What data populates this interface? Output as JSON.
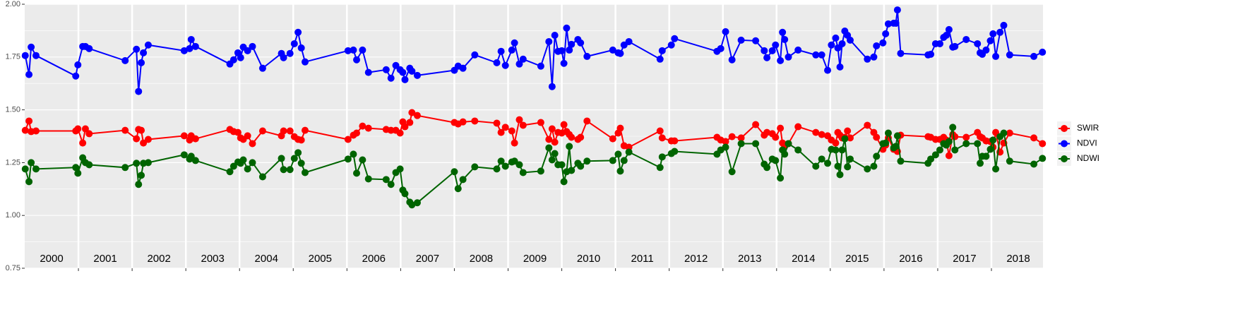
{
  "chart_data": {
    "type": "line",
    "x": [
      2000.01,
      2000.08,
      2000.12,
      2000.21,
      2000.95,
      2000.99,
      2001.08,
      2001.13,
      2001.2,
      2001.87,
      2002.08,
      2002.12,
      2002.17,
      2002.21,
      2002.3,
      2002.97,
      2003.07,
      2003.1,
      2003.18,
      2003.82,
      2003.89,
      2003.97,
      2004.02,
      2004.07,
      2004.15,
      2004.24,
      2004.43,
      2004.78,
      2004.82,
      2004.94,
      2005.02,
      2005.09,
      2005.15,
      2005.22,
      2006.02,
      2006.12,
      2006.18,
      2006.29,
      2006.4,
      2006.73,
      2006.82,
      2006.91,
      2006.99,
      2007.04,
      2007.08,
      2007.17,
      2007.21,
      2007.31,
      2008.0,
      2008.07,
      2008.16,
      2008.38,
      2008.79,
      2008.87,
      2008.95,
      2009.07,
      2009.12,
      2009.21,
      2009.28,
      2009.61,
      2009.76,
      2009.82,
      2009.87,
      2009.93,
      2010.0,
      2010.04,
      2010.09,
      2010.14,
      2010.18,
      2010.3,
      2010.35,
      2010.47,
      2010.95,
      2011.05,
      2011.09,
      2011.16,
      2011.25,
      2011.83,
      2011.87,
      2012.04,
      2012.1,
      2012.89,
      2012.96,
      2013.05,
      2013.17,
      2013.34,
      2013.61,
      2013.77,
      2013.82,
      2013.92,
      2013.98,
      2014.07,
      2014.11,
      2014.15,
      2014.22,
      2014.4,
      2014.73,
      2014.84,
      2014.95,
      2015.02,
      2015.1,
      2015.14,
      2015.18,
      2015.22,
      2015.27,
      2015.32,
      2015.37,
      2015.69,
      2015.81,
      2015.86,
      2015.98,
      2016.03,
      2016.08,
      2016.18,
      2016.22,
      2016.25,
      2016.31,
      2016.82,
      2016.87,
      2016.96,
      2017.04,
      2017.11,
      2017.16,
      2017.21,
      2017.28,
      2017.32,
      2017.53,
      2017.74,
      2017.79,
      2017.83,
      2017.9,
      2017.98,
      2018.03,
      2018.08,
      2018.16,
      2018.23,
      2018.34,
      2018.79,
      2018.95
    ],
    "series": [
      {
        "name": "SWIR",
        "color": "#ff0000",
        "values": [
          1.403,
          1.447,
          1.397,
          1.4,
          1.4,
          1.41,
          1.343,
          1.41,
          1.387,
          1.403,
          1.363,
          1.407,
          1.403,
          1.343,
          1.36,
          1.377,
          1.357,
          1.377,
          1.363,
          1.407,
          1.397,
          1.393,
          1.367,
          1.36,
          1.377,
          1.34,
          1.4,
          1.377,
          1.4,
          1.4,
          1.373,
          1.36,
          1.357,
          1.403,
          1.36,
          1.38,
          1.39,
          1.423,
          1.413,
          1.407,
          1.403,
          1.403,
          1.39,
          1.443,
          1.42,
          1.44,
          1.487,
          1.473,
          1.44,
          1.433,
          1.443,
          1.447,
          1.437,
          1.393,
          1.417,
          1.4,
          1.343,
          1.453,
          1.427,
          1.44,
          1.36,
          1.41,
          1.347,
          1.393,
          1.39,
          1.43,
          1.397,
          1.383,
          1.37,
          1.36,
          1.37,
          1.447,
          1.363,
          1.39,
          1.413,
          1.33,
          1.323,
          1.4,
          1.367,
          1.353,
          1.353,
          1.37,
          1.357,
          1.35,
          1.373,
          1.367,
          1.43,
          1.38,
          1.393,
          1.387,
          1.37,
          1.413,
          1.343,
          1.327,
          1.34,
          1.42,
          1.393,
          1.383,
          1.377,
          1.357,
          1.343,
          1.393,
          1.38,
          1.367,
          1.37,
          1.4,
          1.367,
          1.427,
          1.393,
          1.37,
          1.313,
          1.333,
          1.367,
          1.313,
          1.323,
          1.303,
          1.38,
          1.373,
          1.37,
          1.36,
          1.36,
          1.37,
          1.357,
          1.283,
          1.383,
          1.373,
          1.37,
          1.393,
          1.373,
          1.367,
          1.353,
          1.35,
          1.323,
          1.393,
          1.3,
          1.343,
          1.39,
          1.367,
          1.34
        ]
      },
      {
        "name": "NDVI",
        "color": "#0000ff",
        "values": [
          1.757,
          1.667,
          1.797,
          1.757,
          1.66,
          1.713,
          1.8,
          1.8,
          1.79,
          1.733,
          1.787,
          1.587,
          1.723,
          1.77,
          1.807,
          1.78,
          1.79,
          1.833,
          1.8,
          1.717,
          1.737,
          1.77,
          1.747,
          1.797,
          1.78,
          1.8,
          1.697,
          1.767,
          1.747,
          1.767,
          1.813,
          1.867,
          1.793,
          1.727,
          1.78,
          1.783,
          1.737,
          1.783,
          1.677,
          1.69,
          1.65,
          1.71,
          1.69,
          1.677,
          1.643,
          1.697,
          1.683,
          1.663,
          1.687,
          1.707,
          1.697,
          1.76,
          1.723,
          1.777,
          1.71,
          1.783,
          1.817,
          1.717,
          1.74,
          1.707,
          1.823,
          1.61,
          1.853,
          1.777,
          1.78,
          1.72,
          1.887,
          1.783,
          1.81,
          1.833,
          1.817,
          1.753,
          1.783,
          1.77,
          1.767,
          1.807,
          1.823,
          1.74,
          1.78,
          1.807,
          1.837,
          1.777,
          1.79,
          1.87,
          1.737,
          1.83,
          1.827,
          1.78,
          1.747,
          1.78,
          1.807,
          1.733,
          1.867,
          1.833,
          1.75,
          1.783,
          1.76,
          1.76,
          1.687,
          1.807,
          1.84,
          1.793,
          1.703,
          1.813,
          1.873,
          1.853,
          1.83,
          1.74,
          1.75,
          1.803,
          1.817,
          1.86,
          1.907,
          1.91,
          1.91,
          1.973,
          1.767,
          1.76,
          1.763,
          1.813,
          1.813,
          1.843,
          1.853,
          1.88,
          1.797,
          1.8,
          1.833,
          1.813,
          1.77,
          1.763,
          1.783,
          1.827,
          1.86,
          1.753,
          1.867,
          1.9,
          1.76,
          1.753,
          1.773
        ]
      },
      {
        "name": "NDWI",
        "color": "#006400",
        "values": [
          1.22,
          1.16,
          1.25,
          1.22,
          1.227,
          1.2,
          1.273,
          1.25,
          1.24,
          1.227,
          1.247,
          1.147,
          1.19,
          1.247,
          1.25,
          1.287,
          1.267,
          1.28,
          1.26,
          1.207,
          1.233,
          1.253,
          1.247,
          1.263,
          1.22,
          1.25,
          1.183,
          1.27,
          1.217,
          1.217,
          1.27,
          1.297,
          1.247,
          1.203,
          1.267,
          1.29,
          1.2,
          1.263,
          1.173,
          1.17,
          1.147,
          1.203,
          1.22,
          1.12,
          1.103,
          1.063,
          1.05,
          1.06,
          1.207,
          1.127,
          1.17,
          1.23,
          1.22,
          1.257,
          1.233,
          1.253,
          1.257,
          1.24,
          1.203,
          1.21,
          1.32,
          1.263,
          1.293,
          1.24,
          1.24,
          1.16,
          1.207,
          1.327,
          1.213,
          1.247,
          1.233,
          1.257,
          1.26,
          1.29,
          1.21,
          1.26,
          1.3,
          1.227,
          1.277,
          1.293,
          1.303,
          1.29,
          1.31,
          1.323,
          1.207,
          1.34,
          1.34,
          1.243,
          1.227,
          1.267,
          1.26,
          1.177,
          1.31,
          1.29,
          1.34,
          1.31,
          1.233,
          1.267,
          1.247,
          1.313,
          1.31,
          1.233,
          1.193,
          1.31,
          1.363,
          1.23,
          1.267,
          1.22,
          1.233,
          1.28,
          1.34,
          1.343,
          1.39,
          1.32,
          1.327,
          1.377,
          1.257,
          1.247,
          1.267,
          1.287,
          1.31,
          1.34,
          1.333,
          1.35,
          1.417,
          1.31,
          1.34,
          1.34,
          1.247,
          1.28,
          1.28,
          1.313,
          1.357,
          1.22,
          1.373,
          1.39,
          1.257,
          1.243,
          1.27
        ]
      }
    ],
    "xlim": [
      2000,
      2018.96
    ],
    "ylim": [
      0.75,
      2.0
    ],
    "yticks": [
      {
        "value": 0.75,
        "label": "0.75"
      },
      {
        "value": 1.0,
        "label": "1.00"
      },
      {
        "value": 1.25,
        "label": "1.25"
      },
      {
        "value": 1.5,
        "label": "1.50"
      },
      {
        "value": 1.75,
        "label": "1.75"
      },
      {
        "value": 2.0,
        "label": "2.00"
      }
    ],
    "year_labels": [
      2000,
      2001,
      2002,
      2003,
      2004,
      2005,
      2006,
      2007,
      2008,
      2009,
      2010,
      2011,
      2012,
      2013,
      2014,
      2015,
      2016,
      2017,
      2018
    ],
    "grid": true,
    "legend_position": "right"
  }
}
